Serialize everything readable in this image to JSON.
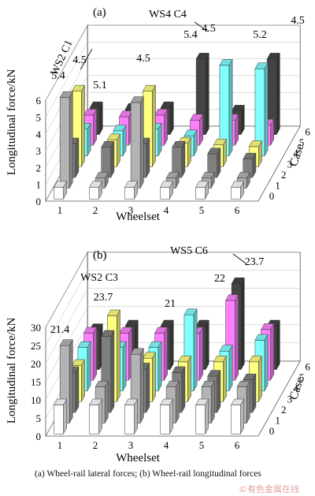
{
  "caption": "(a) Wheel-rail lateral forces; (b) Wheel-rail longitudinal forces",
  "watermark": "©有色金属在线",
  "case_colors": [
    "#ffffff",
    "#b3b3b3",
    "#7f7f7f",
    "#ffff80",
    "#80ffff",
    "#ff80ff",
    "#444444"
  ],
  "chart_data": [
    {
      "type": "bar3d",
      "panel_label": "(a)",
      "xlabel": "Wheelset",
      "ylabel": "Longitudinal force/kN",
      "zlabel": "Case",
      "categories": [
        "1",
        "2",
        "3",
        "4",
        "5",
        "6"
      ],
      "case_ticks": [
        "0",
        "1",
        "2",
        "3",
        "4",
        "5",
        "6"
      ],
      "yticks": [
        "0",
        "1",
        "2",
        "3",
        "4",
        "5",
        "6"
      ],
      "ylim": [
        0,
        6
      ],
      "series": [
        {
          "case": 0,
          "values": [
            0.7,
            0.7,
            0.7,
            0.7,
            0.7,
            0.7
          ]
        },
        {
          "case": 1,
          "values": [
            5.4,
            0.6,
            5.1,
            0.6,
            0.6,
            0.6
          ]
        },
        {
          "case": 2,
          "values": [
            2.0,
            1.8,
            2.0,
            1.8,
            1.4,
            1.1
          ]
        },
        {
          "case": 3,
          "values": [
            4.5,
            1.6,
            4.5,
            1.4,
            1.3,
            1.2
          ]
        },
        {
          "case": 4,
          "values": [
            1.6,
            1.5,
            1.6,
            1.2,
            5.4,
            5.2
          ]
        },
        {
          "case": 5,
          "values": [
            1.8,
            1.7,
            1.8,
            1.5,
            1.5,
            1.2
          ]
        },
        {
          "case": 6,
          "values": [
            1.6,
            1.5,
            1.6,
            4.5,
            1.4,
            4.5
          ]
        }
      ],
      "annotations": [
        {
          "text": "WS2 C1"
        },
        {
          "text": "4.5"
        },
        {
          "text": "5.4"
        },
        {
          "text": "5.1"
        },
        {
          "text": "4.5"
        },
        {
          "text": "WS4 C4"
        },
        {
          "text": "5.4"
        },
        {
          "text": "4.5"
        },
        {
          "text": "5.2"
        },
        {
          "text": "4.5"
        }
      ]
    },
    {
      "type": "bar3d",
      "panel_label": "(b)",
      "xlabel": "Wheelset",
      "ylabel": "Longitudinal force/kN",
      "zlabel": "Case",
      "categories": [
        "1",
        "2",
        "3",
        "4",
        "5",
        "6"
      ],
      "case_ticks": [
        "0",
        "1",
        "2",
        "3",
        "4",
        "5",
        "6"
      ],
      "yticks": [
        "0",
        "5",
        "10",
        "15",
        "20",
        "25",
        "30"
      ],
      "ylim": [
        0,
        30
      ],
      "series": [
        {
          "case": 0,
          "values": [
            8,
            8,
            8,
            8,
            8,
            8
          ]
        },
        {
          "case": 1,
          "values": [
            21.4,
            10,
            19,
            10,
            10,
            10
          ]
        },
        {
          "case": 2,
          "values": [
            11,
            21,
            12,
            11,
            10,
            9
          ]
        },
        {
          "case": 3,
          "values": [
            10,
            23.7,
            12,
            11,
            11,
            11
          ]
        },
        {
          "case": 4,
          "values": [
            12,
            12,
            12,
            21,
            11,
            14
          ]
        },
        {
          "case": 5,
          "values": [
            13,
            13,
            13,
            13,
            22,
            14
          ]
        },
        {
          "case": 6,
          "values": [
            11,
            12,
            12,
            12,
            23.7,
            12
          ]
        }
      ],
      "annotations": [
        {
          "text": "21.4"
        },
        {
          "text": "WS2 C3"
        },
        {
          "text": "23.7"
        },
        {
          "text": "21"
        },
        {
          "text": "22"
        },
        {
          "text": "WS5 C6"
        },
        {
          "text": "23.7"
        }
      ]
    }
  ]
}
